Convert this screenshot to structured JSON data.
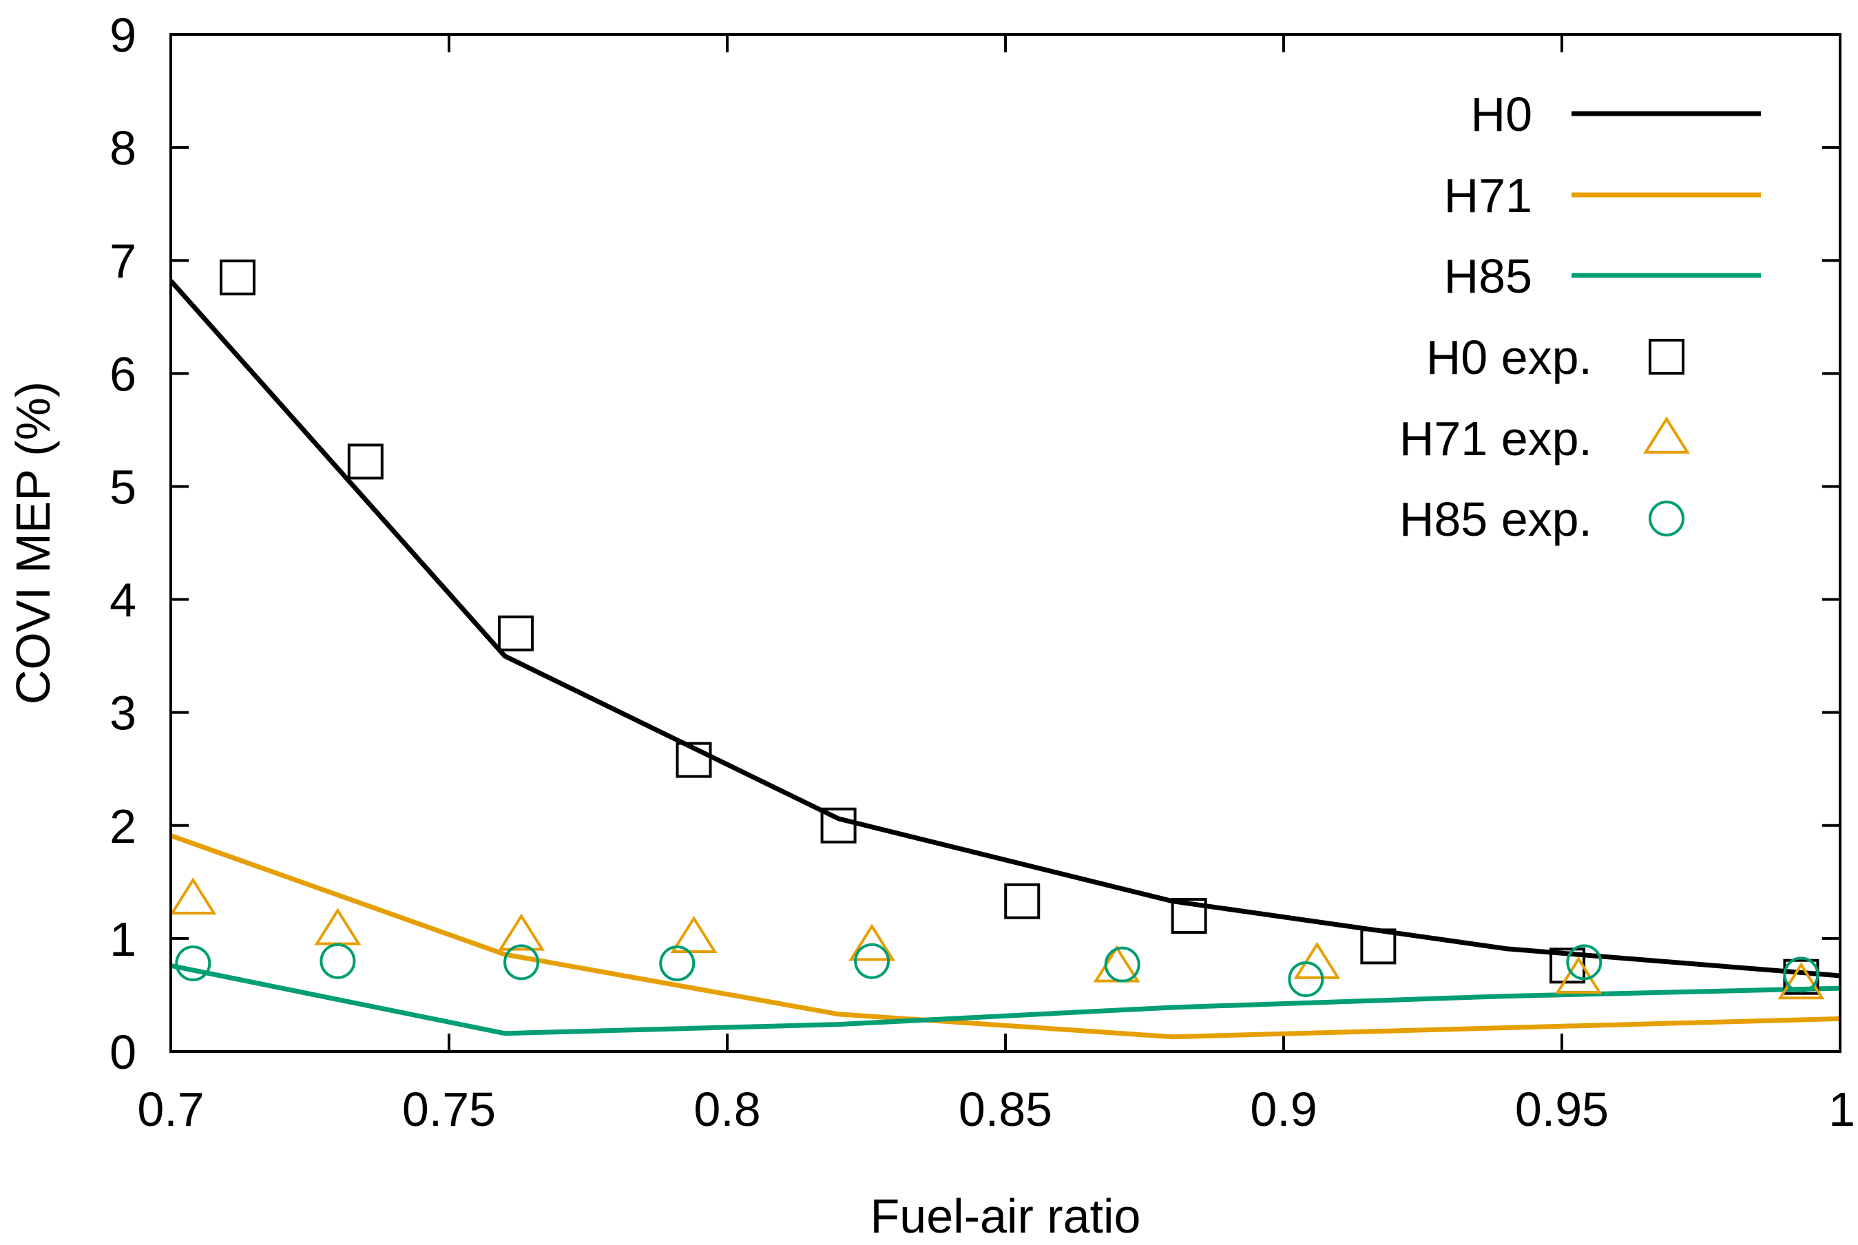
{
  "chart_data": {
    "type": "line",
    "title": "",
    "xlabel": "Fuel-air ratio",
    "ylabel": "COVI MEP (%)",
    "xlim": [
      0.7,
      1.0
    ],
    "ylim": [
      0,
      9
    ],
    "xticks": [
      0.7,
      0.75,
      0.8,
      0.85,
      0.9,
      0.95,
      1.0
    ],
    "xtick_labels": [
      "0.7",
      "0.75",
      "0.8",
      "0.85",
      "0.9",
      "0.95",
      "1"
    ],
    "yticks": [
      0,
      1,
      2,
      3,
      4,
      5,
      6,
      7,
      8,
      9
    ],
    "ytick_labels": [
      "0",
      "1",
      "2",
      "3",
      "4",
      "5",
      "6",
      "7",
      "8",
      "9"
    ],
    "grid": false,
    "legend_position": "top-right",
    "colors": {
      "H0": "#000000",
      "H71": "#e69f00",
      "H85": "#009e73"
    },
    "series": [
      {
        "name": "H0",
        "kind": "line",
        "color": "#000000",
        "x": [
          0.7,
          0.76,
          0.82,
          0.88,
          0.94,
          1.0
        ],
        "y": [
          6.82,
          3.5,
          2.06,
          1.33,
          0.91,
          0.67
        ]
      },
      {
        "name": "H71",
        "kind": "line",
        "color": "#e69f00",
        "x": [
          0.7,
          0.76,
          0.82,
          0.88,
          0.94,
          1.0
        ],
        "y": [
          1.91,
          0.86,
          0.33,
          0.13,
          0.21,
          0.29
        ]
      },
      {
        "name": "H85",
        "kind": "line",
        "color": "#009e73",
        "x": [
          0.7,
          0.76,
          0.82,
          0.88,
          0.94,
          1.0
        ],
        "y": [
          0.76,
          0.16,
          0.24,
          0.39,
          0.49,
          0.56
        ]
      },
      {
        "name": "H0 exp.",
        "kind": "marker",
        "marker": "square",
        "color": "#000000",
        "x": [
          0.712,
          0.735,
          0.762,
          0.794,
          0.82,
          0.853,
          0.883,
          0.917,
          0.951,
          0.993
        ],
        "y": [
          6.85,
          5.22,
          3.7,
          2.58,
          2.0,
          1.33,
          1.2,
          0.93,
          0.76,
          0.66
        ]
      },
      {
        "name": "H71 exp.",
        "kind": "marker",
        "marker": "triangle",
        "color": "#e69f00",
        "x": [
          0.704,
          0.73,
          0.763,
          0.794,
          0.826,
          0.87,
          0.906,
          0.953,
          0.993
        ],
        "y": [
          1.35,
          1.08,
          1.03,
          1.01,
          0.94,
          0.75,
          0.78,
          0.65,
          0.6
        ]
      },
      {
        "name": "H85 exp.",
        "kind": "marker",
        "marker": "circle",
        "color": "#009e73",
        "x": [
          0.704,
          0.73,
          0.763,
          0.791,
          0.826,
          0.871,
          0.904,
          0.954,
          0.993
        ],
        "y": [
          0.78,
          0.8,
          0.79,
          0.78,
          0.8,
          0.77,
          0.64,
          0.79,
          0.68
        ]
      }
    ],
    "legend": [
      "H0",
      "H71",
      "H85",
      "H0 exp.",
      "H71 exp.",
      "H85 exp."
    ]
  }
}
